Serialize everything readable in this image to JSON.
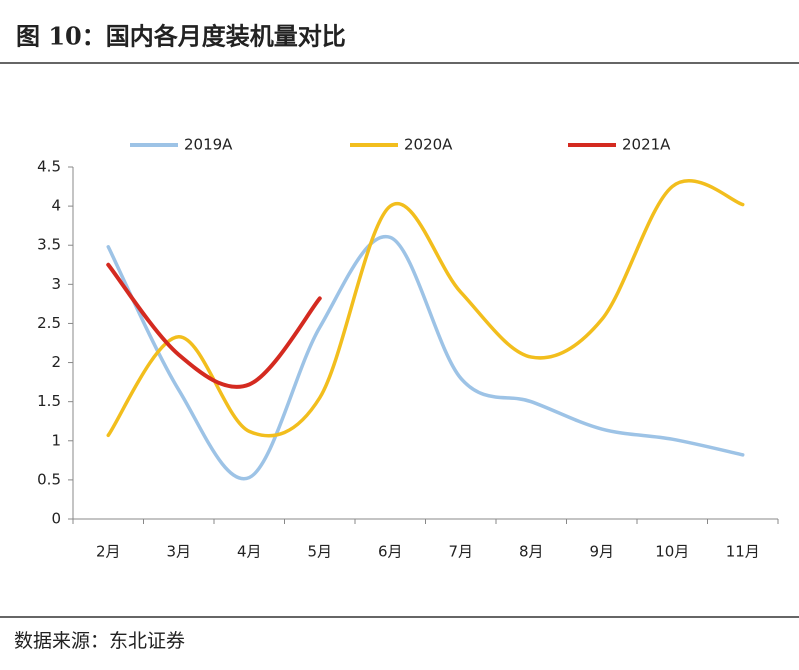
{
  "chart_data": {
    "type": "line",
    "title": "图 10：国内各月度装机量对比",
    "source": "数据来源：东北证券",
    "categories": [
      "2月",
      "3月",
      "4月",
      "5月",
      "6月",
      "7月",
      "8月",
      "9月",
      "10月",
      "11月"
    ],
    "series": [
      {
        "name": "2019A",
        "color": "#9dc3e6",
        "values": [
          3.48,
          1.65,
          0.53,
          2.45,
          3.6,
          1.8,
          1.5,
          1.15,
          1.02,
          0.82
        ]
      },
      {
        "name": "2020A",
        "color": "#f2be1d",
        "values": [
          1.07,
          2.33,
          1.12,
          1.55,
          4.0,
          2.9,
          2.07,
          2.55,
          4.25,
          4.02
        ]
      },
      {
        "name": "2021A",
        "color": "#d42a20",
        "values": [
          3.25,
          2.1,
          1.72,
          2.82,
          null,
          null,
          null,
          null,
          null,
          null
        ]
      }
    ],
    "ylim": [
      0,
      4.5
    ],
    "yticks": [
      0,
      0.5,
      1,
      1.5,
      2,
      2.5,
      3,
      3.5,
      4,
      4.5
    ],
    "legend": "top",
    "smooth": true
  }
}
